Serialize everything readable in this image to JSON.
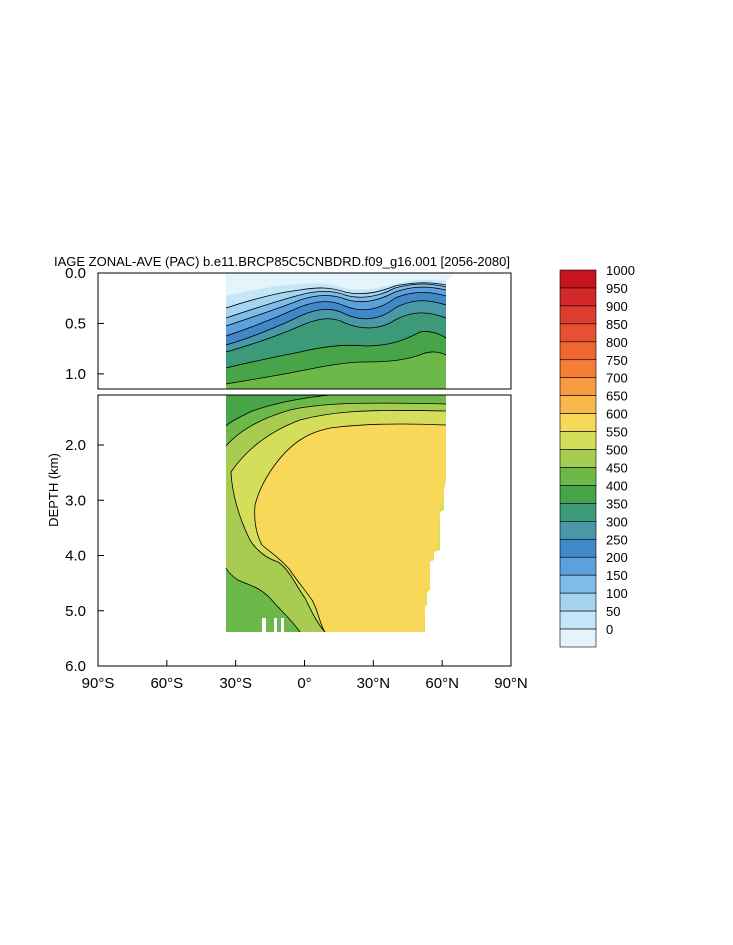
{
  "chart_data": {
    "type": "contour",
    "title": "IAGE ZONAL-AVE (PAC) b.e11.BRCP85C5CNBDRD.f09_g16.001 [2056-2080]",
    "ylabel": "DEPTH (km)",
    "xlabel": "",
    "xlim": [
      -90,
      90
    ],
    "x_ticks": [
      "90°S",
      "60°S",
      "30°S",
      "0°",
      "30°N",
      "60°N",
      "90°N"
    ],
    "upper_panel": {
      "ylim": [
        0,
        1.15
      ],
      "y_ticks": [
        "0.0",
        "0.5",
        "1.0"
      ]
    },
    "lower_panel": {
      "ylim": [
        1.2,
        6.0
      ],
      "y_ticks": [
        "2.0",
        "3.0",
        "4.0",
        "5.0",
        "6.0"
      ]
    },
    "data_extent": {
      "lat": [
        -34,
        62
      ],
      "max_depth_km": 5.4
    },
    "contour_levels": [
      0,
      50,
      100,
      150,
      200,
      250,
      300,
      350,
      400,
      450,
      500,
      550,
      600,
      650,
      700,
      750,
      800,
      850,
      900,
      950,
      1000
    ],
    "colorbar": {
      "labels": [
        "1000",
        "950",
        "900",
        "850",
        "800",
        "750",
        "700",
        "650",
        "600",
        "550",
        "500",
        "450",
        "400",
        "350",
        "300",
        "250",
        "200",
        "150",
        "100",
        "50",
        "0"
      ],
      "colors": [
        "#c8141e",
        "#d2282a",
        "#de3c2e",
        "#e85032",
        "#ee6630",
        "#f47e36",
        "#f89a40",
        "#f8b84c",
        "#f8d858",
        "#d4de5a",
        "#a8cc52",
        "#6cb848",
        "#48a448",
        "#3c9a78",
        "#4898a8",
        "#4088c8",
        "#5ca0dc",
        "#80bce8",
        "#a4d4f0",
        "#c4e6f8",
        "#e4f4fc"
      ]
    },
    "grid": false,
    "legend": "right"
  }
}
